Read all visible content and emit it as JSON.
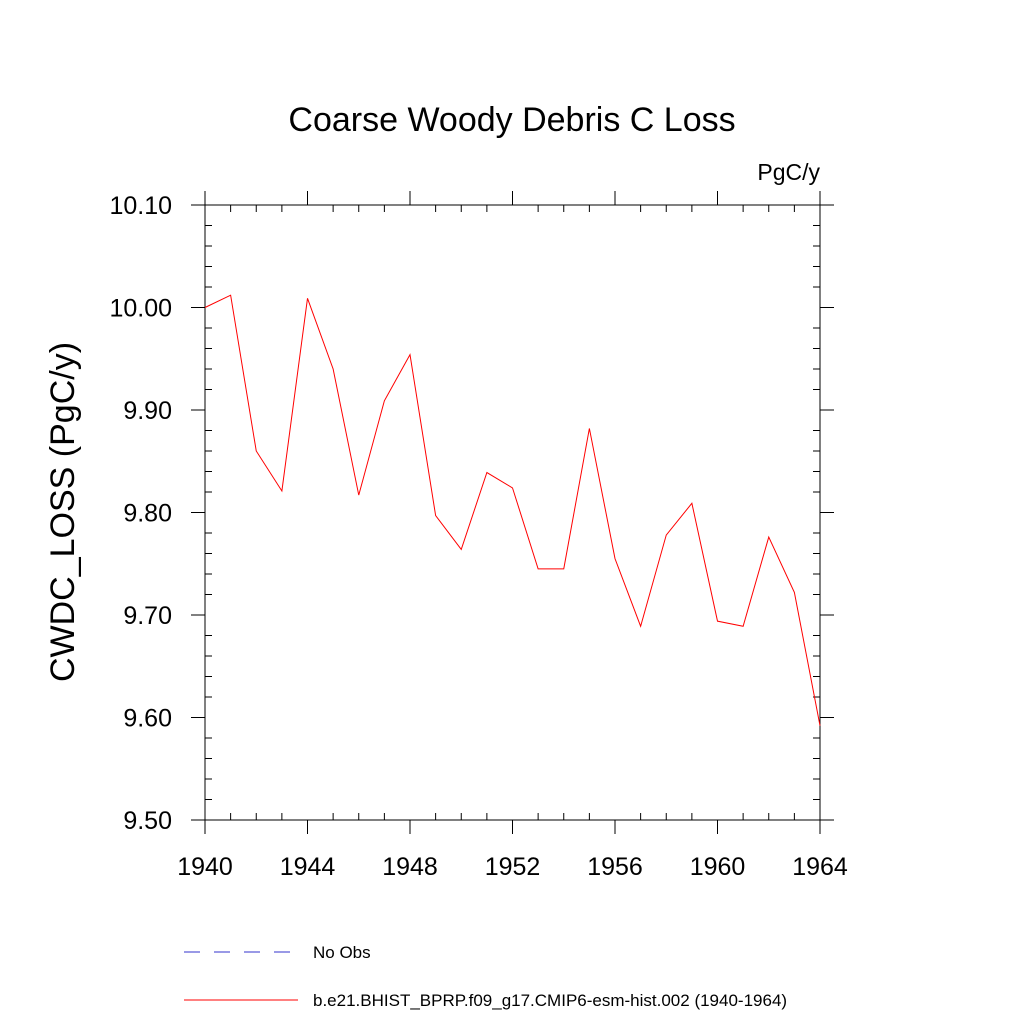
{
  "chart_data": {
    "type": "line",
    "title": "Coarse Woody Debris C Loss",
    "units": "PgC/y",
    "xlabel": "",
    "ylabel": "CWDC_LOSS  (PgC/y)",
    "xlim": [
      1940,
      1964
    ],
    "ylim": [
      9.5,
      10.1
    ],
    "x_ticks": [
      1940,
      1944,
      1948,
      1952,
      1956,
      1960,
      1964
    ],
    "x_tick_labels": [
      "1940",
      "1944",
      "1948",
      "1952",
      "1956",
      "1960",
      "1964"
    ],
    "y_ticks": [
      9.5,
      9.6,
      9.7,
      9.8,
      9.9,
      10.0,
      10.1
    ],
    "y_tick_labels": [
      "9.50",
      "9.60",
      "9.70",
      "9.80",
      "9.90",
      "10.00",
      "10.10"
    ],
    "grid": false,
    "legend_position": "bottom",
    "x": [
      1940,
      1941,
      1942,
      1943,
      1944,
      1945,
      1946,
      1947,
      1948,
      1949,
      1950,
      1951,
      1952,
      1953,
      1954,
      1955,
      1956,
      1957,
      1958,
      1959,
      1960,
      1961,
      1962,
      1963,
      1964
    ],
    "series": [
      {
        "name": "b.e21.BHIST_BPRP.f09_g17.CMIP6-esm-hist.002 (1940-1964)",
        "color": "#ff0000",
        "style": "solid",
        "values": [
          10.0,
          10.012,
          9.86,
          9.821,
          10.009,
          9.94,
          9.817,
          9.909,
          9.954,
          9.797,
          9.764,
          9.839,
          9.824,
          9.745,
          9.745,
          9.882,
          9.755,
          9.689,
          9.778,
          9.809,
          9.694,
          9.689,
          9.776,
          9.722,
          9.592
        ]
      }
    ],
    "legend": [
      {
        "label": "No Obs",
        "color": "#3333cc",
        "style": "dashed"
      },
      {
        "label": "b.e21.BHIST_BPRP.f09_g17.CMIP6-esm-hist.002 (1940-1964)",
        "color": "#ff0000",
        "style": "solid"
      }
    ]
  }
}
